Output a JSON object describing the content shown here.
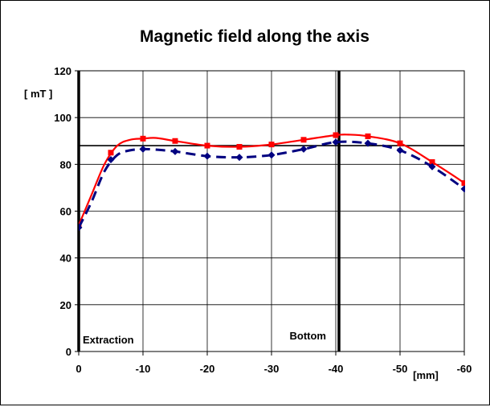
{
  "chart_data": {
    "type": "line",
    "title": "Magnetic field along the axis",
    "ylabel": "[ mT ]",
    "xlabel": "[mm]",
    "xlim": [
      0,
      -60
    ],
    "ylim": [
      0,
      120
    ],
    "x_ticks": [
      0,
      -10,
      -20,
      -30,
      -40,
      -50,
      -60
    ],
    "x_tick_labels": [
      "0",
      "-10",
      "-20",
      "-30",
      "-40",
      "-50",
      "-60"
    ],
    "y_ticks": [
      0,
      20,
      40,
      60,
      80,
      100,
      120
    ],
    "y_tick_labels": [
      "0",
      "20",
      "40",
      "60",
      "80",
      "100",
      "120"
    ],
    "grid": true,
    "colors": {
      "series1": "#ff0000",
      "series2": "#000080",
      "reference": "#000000"
    },
    "series": [
      {
        "style": "solid",
        "marker": "square",
        "x": [
          0,
          -5,
          -10,
          -15,
          -20,
          -25,
          -30,
          -35,
          -40,
          -45,
          -50,
          -55,
          -60
        ],
        "y": [
          54,
          85,
          91,
          90,
          88,
          87.5,
          88.5,
          90.5,
          92.5,
          92,
          89,
          81,
          72
        ],
        "curve_x": [
          0,
          -2,
          -4,
          -6,
          -8,
          -10,
          -12,
          -15,
          -20,
          -25,
          -30,
          -35,
          -40,
          -42,
          -45,
          -50,
          -55,
          -60,
          -61.5
        ],
        "curve_y": [
          54,
          67,
          80,
          88,
          90.5,
          91,
          91.3,
          90,
          88,
          87.5,
          88.5,
          90.5,
          92.5,
          92.7,
          92,
          89,
          81,
          72,
          68
        ]
      },
      {
        "style": "dashed",
        "marker": "diamond",
        "x": [
          0,
          -5,
          -10,
          -15,
          -20,
          -25,
          -30,
          -35,
          -40,
          -45,
          -50,
          -55,
          -60
        ],
        "y": [
          53,
          82,
          86.5,
          85.5,
          83.5,
          83,
          84,
          86.5,
          89.5,
          89,
          86,
          79,
          69.5
        ],
        "curve_x": [
          0,
          -2,
          -4,
          -6,
          -8,
          -10,
          -12,
          -15,
          -20,
          -25,
          -30,
          -35,
          -40,
          -45,
          -50,
          -55,
          -60,
          -61.5
        ],
        "curve_y": [
          53,
          64,
          77,
          84,
          86,
          86.5,
          86.3,
          85.5,
          83.5,
          83,
          84,
          86.5,
          89.5,
          89,
          86,
          79,
          69.5,
          66
        ]
      }
    ],
    "reference_line_y": 88,
    "vertical_markers": [
      0,
      -40.5
    ],
    "annotations": [
      {
        "text": "Extraction",
        "x": 0
      },
      {
        "text": "Bottom",
        "x": -40
      }
    ]
  }
}
